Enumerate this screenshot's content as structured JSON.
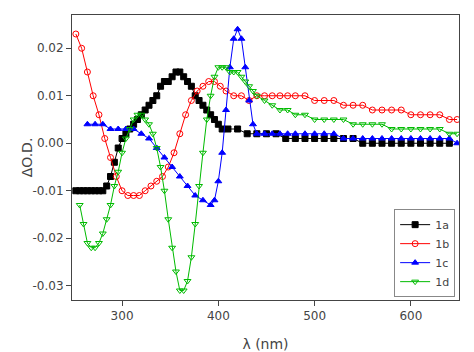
{
  "chart_data": {
    "type": "line",
    "xlabel": "λ (nm)",
    "ylabel": "ΔO.D.",
    "xlim": [
      248,
      650
    ],
    "ylim": [
      -0.033,
      0.027
    ],
    "xticks": [
      300,
      400,
      500,
      600
    ],
    "yticks": [
      -0.03,
      -0.02,
      -0.01,
      {
        "value": 0,
        "label": "0.00"
      },
      0.01,
      0.02
    ],
    "grid": false,
    "legend": "lower right",
    "series": [
      {
        "name": "1a",
        "color": "#000000",
        "marker": "square",
        "x": [
          252,
          256,
          260,
          264,
          268,
          272,
          276,
          280,
          284,
          288,
          292,
          296,
          300,
          304,
          308,
          312,
          316,
          320,
          324,
          328,
          332,
          336,
          340,
          344,
          348,
          352,
          356,
          360,
          364,
          368,
          372,
          376,
          380,
          384,
          388,
          392,
          396,
          400,
          404,
          410,
          420,
          430,
          440,
          450,
          460,
          470,
          480,
          490,
          500,
          510,
          520,
          530,
          540,
          550,
          560,
          570,
          580,
          590,
          600,
          610,
          620,
          630,
          640
        ],
        "values": [
          -0.01,
          -0.01,
          -0.01,
          -0.01,
          -0.01,
          -0.01,
          -0.01,
          -0.01,
          -0.009,
          -0.007,
          -0.004,
          -0.001,
          0.001,
          0.002,
          0.003,
          0.004,
          0.005,
          0.006,
          0.007,
          0.008,
          0.009,
          0.01,
          0.012,
          0.013,
          0.013,
          0.014,
          0.015,
          0.015,
          0.014,
          0.013,
          0.012,
          0.01,
          0.009,
          0.008,
          0.007,
          0.006,
          0.005,
          0.004,
          0.003,
          0.003,
          0.003,
          0.002,
          0.002,
          0.002,
          0.002,
          0.001,
          0.001,
          0.001,
          0.001,
          0.001,
          0.001,
          0.001,
          0.001,
          0.0,
          0.0,
          0.0,
          0.0,
          0.0,
          0.0,
          0.0,
          0.0,
          0.0,
          0.0
        ]
      },
      {
        "name": "1b",
        "color": "#ff0000",
        "marker": "circle-open",
        "x": [
          252,
          258,
          264,
          270,
          276,
          282,
          288,
          294,
          300,
          306,
          312,
          318,
          324,
          330,
          336,
          342,
          348,
          354,
          360,
          366,
          372,
          378,
          384,
          390,
          396,
          402,
          408,
          416,
          424,
          432,
          440,
          448,
          456,
          464,
          472,
          480,
          490,
          500,
          510,
          520,
          530,
          540,
          550,
          560,
          570,
          580,
          590,
          600,
          610,
          620,
          630,
          640,
          648
        ],
        "values": [
          0.023,
          0.02,
          0.015,
          0.01,
          0.006,
          0.001,
          -0.003,
          -0.007,
          -0.01,
          -0.011,
          -0.011,
          -0.011,
          -0.01,
          -0.009,
          -0.008,
          -0.007,
          -0.005,
          -0.002,
          0.002,
          0.006,
          0.009,
          0.011,
          0.012,
          0.013,
          0.013,
          0.012,
          0.011,
          0.01,
          0.01,
          0.009,
          0.01,
          0.01,
          0.01,
          0.01,
          0.01,
          0.01,
          0.01,
          0.009,
          0.009,
          0.009,
          0.008,
          0.008,
          0.008,
          0.007,
          0.007,
          0.007,
          0.007,
          0.006,
          0.006,
          0.006,
          0.006,
          0.005,
          0.005
        ]
      },
      {
        "name": "1c",
        "color": "#0000ff",
        "marker": "triangle-up",
        "x": [
          264,
          272,
          280,
          288,
          296,
          304,
          312,
          320,
          328,
          336,
          344,
          352,
          360,
          368,
          376,
          384,
          392,
          396,
          400,
          404,
          408,
          412,
          416,
          420,
          424,
          428,
          432,
          436,
          440,
          448,
          456,
          464,
          472,
          480,
          490,
          500,
          510,
          520,
          530,
          540,
          550,
          560,
          570,
          580,
          590,
          600,
          610,
          620,
          630,
          640,
          648
        ],
        "values": [
          0.004,
          0.004,
          0.004,
          0.003,
          0.003,
          0.003,
          0.003,
          0.002,
          0.001,
          -0.001,
          -0.003,
          -0.005,
          -0.007,
          -0.009,
          -0.011,
          -0.012,
          -0.013,
          -0.012,
          -0.008,
          -0.002,
          0.007,
          0.016,
          0.022,
          0.024,
          0.022,
          0.016,
          0.009,
          0.004,
          0.002,
          0.002,
          0.002,
          0.002,
          0.002,
          0.002,
          0.002,
          0.002,
          0.002,
          0.002,
          0.001,
          0.001,
          0.001,
          0.001,
          0.001,
          0.001,
          0.001,
          0.001,
          0.001,
          0.001,
          0.001,
          0.001,
          0.0
        ]
      },
      {
        "name": "1d",
        "color": "#00bb00",
        "marker": "triangle-down-open",
        "x": [
          256,
          260,
          264,
          268,
          272,
          276,
          280,
          284,
          288,
          292,
          296,
          300,
          304,
          308,
          312,
          316,
          320,
          324,
          328,
          332,
          336,
          340,
          344,
          348,
          352,
          356,
          360,
          364,
          368,
          372,
          376,
          380,
          384,
          388,
          392,
          396,
          400,
          404,
          408,
          412,
          416,
          420,
          424,
          428,
          432,
          436,
          440,
          448,
          456,
          464,
          472,
          480,
          490,
          500,
          510,
          520,
          530,
          540,
          550,
          560,
          570,
          580,
          590,
          600,
          610,
          620,
          630,
          640,
          648
        ],
        "values": [
          -0.013,
          -0.017,
          -0.021,
          -0.022,
          -0.022,
          -0.021,
          -0.019,
          -0.016,
          -0.013,
          -0.009,
          -0.006,
          -0.002,
          0.001,
          0.003,
          0.005,
          0.006,
          0.006,
          0.005,
          0.004,
          0.002,
          -0.001,
          -0.005,
          -0.01,
          -0.016,
          -0.022,
          -0.027,
          -0.031,
          -0.031,
          -0.029,
          -0.024,
          -0.017,
          -0.009,
          -0.002,
          0.005,
          0.01,
          0.014,
          0.016,
          0.016,
          0.016,
          0.015,
          0.015,
          0.015,
          0.014,
          0.013,
          0.012,
          0.011,
          0.01,
          0.009,
          0.008,
          0.007,
          0.007,
          0.006,
          0.006,
          0.005,
          0.005,
          0.005,
          0.005,
          0.004,
          0.004,
          0.004,
          0.004,
          0.003,
          0.003,
          0.003,
          0.003,
          0.003,
          0.003,
          0.002,
          0.002
        ]
      }
    ]
  }
}
